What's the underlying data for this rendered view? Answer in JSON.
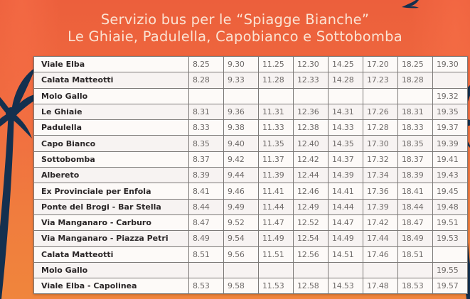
{
  "header": {
    "title_line1": "Servizio bus per le “Spiagge Bianche”",
    "title_line2": "Le Ghiaie, Padulella, Capobianco e Sottobomba"
  },
  "decor": {
    "background_color": "#ef6a3e",
    "silhouette_color": "#14304f",
    "title_color": "#fbe3d3",
    "icons": [
      "palm-tree-left",
      "palm-tree-right",
      "bird-top-right"
    ]
  },
  "timetable": {
    "rows": [
      {
        "stop": "Viale Elba",
        "times": [
          "8.25",
          "9.30",
          "11.25",
          "12.30",
          "14.25",
          "17.20",
          "18.25",
          "19.30"
        ]
      },
      {
        "stop": "Calata Matteotti",
        "times": [
          "8.28",
          "9.33",
          "11.28",
          "12.33",
          "14.28",
          "17.23",
          "18.28",
          ""
        ]
      },
      {
        "stop": "Molo Gallo",
        "times": [
          "",
          "",
          "",
          "",
          "",
          "",
          "",
          "19.32"
        ]
      },
      {
        "stop": "Le Ghiaie",
        "times": [
          "8.31",
          "9.36",
          "11.31",
          "12.36",
          "14.31",
          "17.26",
          "18.31",
          "19.35"
        ]
      },
      {
        "stop": "Padulella",
        "times": [
          "8.33",
          "9.38",
          "11.33",
          "12.38",
          "14.33",
          "17.28",
          "18.33",
          "19.37"
        ]
      },
      {
        "stop": "Capo Bianco",
        "times": [
          "8.35",
          "9.40",
          "11.35",
          "12.40",
          "14.35",
          "17.30",
          "18.35",
          "19.39"
        ]
      },
      {
        "stop": "Sottobomba",
        "times": [
          "8.37",
          "9.42",
          "11.37",
          "12.42",
          "14.37",
          "17.32",
          "18.37",
          "19.41"
        ]
      },
      {
        "stop": "Albereto",
        "times": [
          "8.39",
          "9.44",
          "11.39",
          "12.44",
          "14.39",
          "17.34",
          "18.39",
          "19.43"
        ]
      },
      {
        "stop": "Ex Provinciale per Enfola",
        "times": [
          "8.41",
          "9.46",
          "11.41",
          "12.46",
          "14.41",
          "17.36",
          "18.41",
          "19.45"
        ]
      },
      {
        "stop": "Ponte del Brogi - Bar Stella",
        "times": [
          "8.44",
          "9.49",
          "11.44",
          "12.49",
          "14.44",
          "17.39",
          "18.44",
          "19.48"
        ]
      },
      {
        "stop": "Via Manganaro - Carburo",
        "times": [
          "8.47",
          "9.52",
          "11.47",
          "12.52",
          "14.47",
          "17.42",
          "18.47",
          "19.51"
        ]
      },
      {
        "stop": "Via Manganaro - Piazza Petri",
        "times": [
          "8.49",
          "9.54",
          "11.49",
          "12.54",
          "14.49",
          "17.44",
          "18.49",
          "19.53"
        ]
      },
      {
        "stop": "Calata Matteotti",
        "times": [
          "8.51",
          "9.56",
          "11.51",
          "12.56",
          "14.51",
          "17.46",
          "18.51",
          ""
        ]
      },
      {
        "stop": "Molo Gallo",
        "times": [
          "",
          "",
          "",
          "",
          "",
          "",
          "",
          "19.55"
        ]
      },
      {
        "stop": "Viale Elba - Capolinea",
        "times": [
          "8.53",
          "9.58",
          "11.53",
          "12.58",
          "14.53",
          "17.48",
          "18.53",
          "19.57"
        ]
      }
    ]
  }
}
